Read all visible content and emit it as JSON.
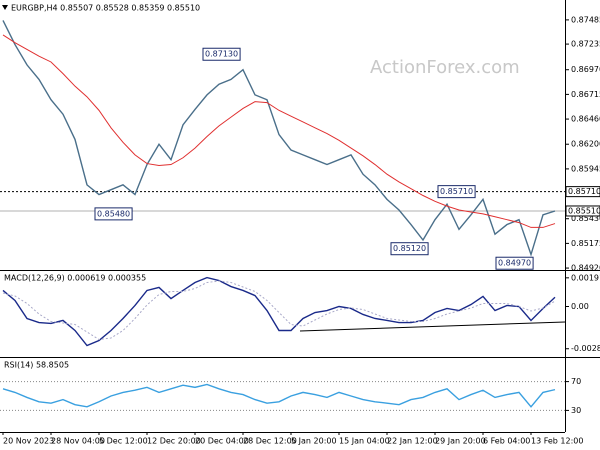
{
  "chart_data": [
    {
      "type": "line",
      "title": "EURGBP,H4 0.85507 0.85528 0.85359 0.85510",
      "watermark": "ActionForex.com",
      "series": [
        {
          "color": "#4a6f8a",
          "values": [
            0.8748,
            0.8723,
            0.8702,
            0.8687,
            0.8666,
            0.8651,
            0.8625,
            0.8578,
            0.8568,
            0.8573,
            0.8578,
            0.8568,
            0.8599,
            0.862,
            0.8604,
            0.864,
            0.8656,
            0.8671,
            0.8682,
            0.8687,
            0.8697,
            0.8671,
            0.8666,
            0.863,
            0.8614,
            0.8609,
            0.8604,
            0.8599,
            0.8604,
            0.8609,
            0.8589,
            0.8578,
            0.8563,
            0.8552,
            0.8537,
            0.8521,
            0.8542,
            0.8558,
            0.8532,
            0.8547,
            0.8563,
            0.8527,
            0.8537,
            0.8542,
            0.8506,
            0.8547,
            0.8551
          ]
        },
        {
          "color": "#e03030",
          "values": [
            0.8733,
            0.8725,
            0.8718,
            0.8711,
            0.8705,
            0.8693,
            0.868,
            0.8669,
            0.8655,
            0.8637,
            0.8622,
            0.8609,
            0.86,
            0.8598,
            0.8599,
            0.8606,
            0.8616,
            0.8628,
            0.8639,
            0.8648,
            0.8657,
            0.8664,
            0.8663,
            0.8655,
            0.8649,
            0.8643,
            0.8637,
            0.8631,
            0.8624,
            0.8616,
            0.8608,
            0.8599,
            0.8589,
            0.8581,
            0.8574,
            0.8567,
            0.8561,
            0.8556,
            0.8552,
            0.855,
            0.8548,
            0.8545,
            0.8542,
            0.8539,
            0.8534,
            0.8534,
            0.8538
          ]
        }
      ],
      "ylim": [
        0.849,
        0.8767
      ],
      "yticks": [
        0.87485,
        0.87235,
        {
          "value": 0.8697,
          "label": "0.86970"
        },
        0.86715,
        {
          "value": 0.8646,
          "label": "0.86460"
        },
        {
          "value": 0.862,
          "label": "0.86200"
        },
        0.85945,
        {
          "value": 0.8543,
          "label": "0.85430"
        },
        0.85175,
        {
          "value": 0.8492,
          "label": "0.84920"
        }
      ],
      "price_lines": [
        {
          "value": 0.8571,
          "label": "0.85710",
          "style": "dotted"
        },
        {
          "value": 0.8551,
          "label": "0.85510",
          "style": "solid"
        }
      ],
      "annotations": [
        {
          "value": 0.8713,
          "label": "0.87130"
        },
        {
          "value": 0.8548,
          "label": "0.85480"
        },
        {
          "value": 0.8571,
          "label": "0.85710"
        },
        {
          "value": 0.8512,
          "label": "0.85120"
        },
        {
          "value": 0.8497,
          "label": "0.84970"
        }
      ],
      "grid": false
    },
    {
      "type": "line",
      "title": "MACD(12,26,9) 0.000619 0.000355",
      "series": [
        {
          "color": "#1a2a8a",
          "values": [
            0.00107,
            0.0004,
            -0.0008,
            -0.00107,
            -0.00113,
            -0.00093,
            -0.0016,
            -0.0026,
            -0.00227,
            -0.0016,
            -0.0008,
            7e-05,
            0.00107,
            0.00127,
            0.00053,
            0.00107,
            0.0016,
            0.00193,
            0.00173,
            0.00133,
            0.00107,
            0.00073,
            -0.00027,
            -0.0016,
            -0.0016,
            -0.0008,
            -0.0004,
            -0.00027,
            0,
            -0.00013,
            -0.00053,
            -0.0008,
            -0.00093,
            -0.00107,
            -0.00107,
            -0.00093,
            -0.0004,
            -0.00013,
            -0.00027,
            0.00013,
            0.00067,
            -0.00027,
            7e-05,
            0,
            -0.00093,
            -0.00013,
            0.00062
          ]
        },
        {
          "color": "#a8a8c8",
          "values": [
            0.0009,
            0.0007,
            0.0002,
            -0.0005,
            -0.001,
            -0.0011,
            -0.0012,
            -0.0017,
            -0.0022,
            -0.0021,
            -0.0016,
            -0.0008,
            0.0001,
            0.0008,
            0.001,
            0.001,
            0.0012,
            0.0016,
            0.0017,
            0.0016,
            0.0013,
            0.001,
            0.0004,
            -0.0004,
            -0.0012,
            -0.0013,
            -0.0009,
            -0.0005,
            -0.0002,
            -0.0001,
            -0.0002,
            -0.0005,
            -0.0008,
            -0.0009,
            -0.001,
            -0.001,
            -0.0008,
            -0.0005,
            -0.0003,
            -0.0001,
            0.0002,
            0.0002,
            0.0002,
            0,
            -0.0003,
            -0.0001,
            0.00036
          ]
        }
      ],
      "ylim": [
        -0.0033,
        0.0023
      ],
      "yticks": [
        0.001911,
        {
          "value": 0,
          "label": "0.00"
        },
        -0.002816
      ],
      "grid": false
    },
    {
      "type": "line",
      "title": "RSI(14) 58.8505",
      "categories": [
        "20 Nov 2023",
        null,
        null,
        null,
        "28 Nov 04:00",
        null,
        null,
        null,
        "5 Dec 12:00",
        null,
        null,
        null,
        "12 Dec 20:00",
        null,
        null,
        null,
        "20 Dec 04:00",
        null,
        null,
        null,
        "28 Dec 12:00",
        null,
        null,
        null,
        "5 Jan 20:00",
        null,
        null,
        null,
        "15 Jan 04:00",
        null,
        null,
        null,
        "22 Jan 12:00",
        null,
        null,
        null,
        "29 Jan 20:00",
        null,
        null,
        null,
        "6 Feb 04:00",
        null,
        null,
        null,
        "13 Feb 12:00",
        null,
        null
      ],
      "series": [
        {
          "color": "#3aa0e0",
          "values": [
            60,
            55,
            48,
            42,
            40,
            45,
            38,
            35,
            42,
            50,
            55,
            58,
            62,
            55,
            60,
            65,
            62,
            66,
            60,
            55,
            52,
            45,
            40,
            42,
            50,
            55,
            52,
            48,
            55,
            50,
            45,
            42,
            40,
            38,
            45,
            48,
            55,
            60,
            45,
            52,
            58,
            48,
            52,
            55,
            35,
            55,
            58.85
          ]
        }
      ],
      "ylim": [
        0,
        100
      ],
      "yticks": [
        70,
        30
      ],
      "grid": true
    }
  ]
}
